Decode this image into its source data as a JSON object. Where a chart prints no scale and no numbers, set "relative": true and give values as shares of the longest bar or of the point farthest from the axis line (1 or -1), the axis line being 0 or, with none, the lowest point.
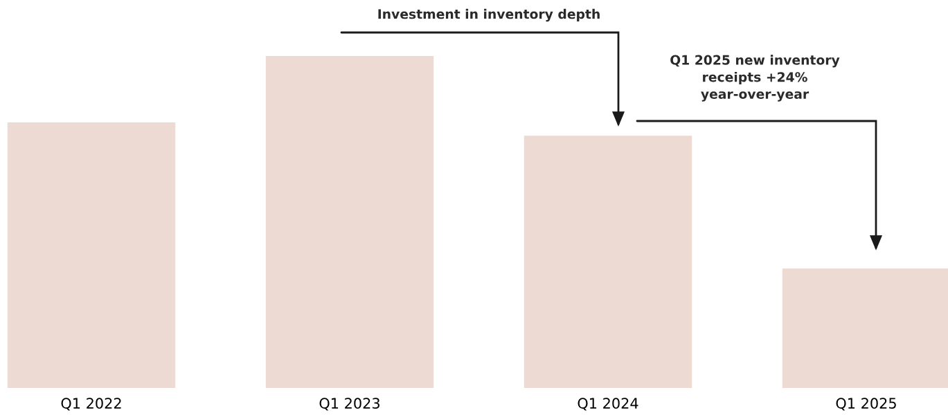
{
  "chart_data": {
    "type": "bar",
    "relative": true,
    "categories": [
      "Q1 2022",
      "Q1 2023",
      "Q1 2024",
      "Q1 2025"
    ],
    "values": [
      0.8,
      1,
      0.76,
      0.36
    ],
    "color": "#ecdad3",
    "grid": false,
    "annotations": [
      "Investment in inventory depth",
      "Q1 2025 new inventory\nreceipts +24%\nyear-over-year"
    ]
  }
}
